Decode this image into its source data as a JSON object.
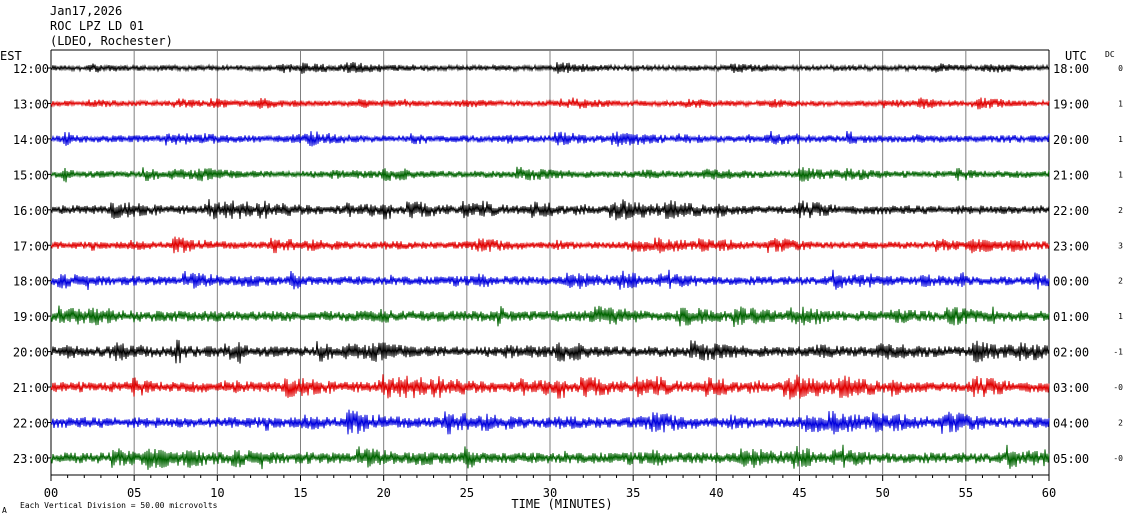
{
  "header": {
    "date": "Jan17,2026",
    "station": "ROC LPZ LD 01",
    "network": "(LDEO, Rochester)"
  },
  "chart_data": {
    "type": "line",
    "title": "Jan17,2026 ROC LPZ LD 01 (LDEO, Rochester)",
    "left_label": "EST",
    "right_label": "UTC",
    "dc_label": "DC",
    "xlabel": "TIME (MINUTES)",
    "xlim": [
      0,
      60
    ],
    "x_ticks": [
      "00",
      "05",
      "10",
      "15",
      "20",
      "25",
      "30",
      "35",
      "40",
      "45",
      "50",
      "55",
      "60"
    ],
    "footnote": "Each Vertical Division =   50.00 microvolts",
    "corner_mark": "A",
    "grid": true,
    "trace_colors": [
      "#000000",
      "#e00000",
      "#0000dd",
      "#006400"
    ],
    "rows": [
      {
        "est": "12:00",
        "utc": "18:00",
        "dc": "0",
        "amplitude": 3
      },
      {
        "est": "13:00",
        "utc": "19:00",
        "dc": "1",
        "amplitude": 3
      },
      {
        "est": "14:00",
        "utc": "20:00",
        "dc": "1",
        "amplitude": 4
      },
      {
        "est": "15:00",
        "utc": "21:00",
        "dc": "1",
        "amplitude": 4
      },
      {
        "est": "16:00",
        "utc": "22:00",
        "dc": "2",
        "amplitude": 5
      },
      {
        "est": "17:00",
        "utc": "23:00",
        "dc": "3",
        "amplitude": 4
      },
      {
        "est": "18:00",
        "utc": "00:00",
        "dc": "2",
        "amplitude": 5
      },
      {
        "est": "19:00",
        "utc": "01:00",
        "dc": "1",
        "amplitude": 6
      },
      {
        "est": "20:00",
        "utc": "02:00",
        "dc": "-1",
        "amplitude": 6
      },
      {
        "est": "21:00",
        "utc": "03:00",
        "dc": "-0",
        "amplitude": 6
      },
      {
        "est": "22:00",
        "utc": "04:00",
        "dc": "2",
        "amplitude": 6
      },
      {
        "est": "23:00",
        "utc": "05:00",
        "dc": "-0",
        "amplitude": 6
      }
    ]
  }
}
